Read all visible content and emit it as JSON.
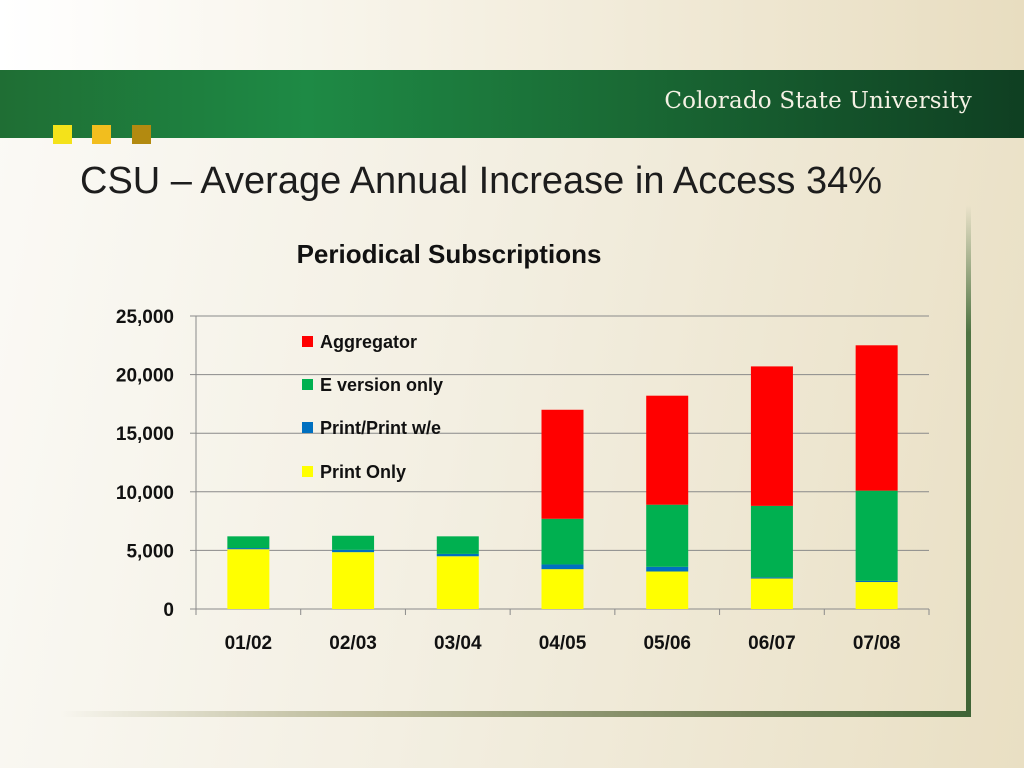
{
  "slide": {
    "brand": "Colorado State University",
    "title": "CSU – Average Annual Increase in Access 34%"
  },
  "colors": {
    "Aggregator": "#ff0000",
    "E version only": "#00b050",
    "Print/Print w/e": "#0070c0",
    "Print Only": "#ffff00"
  },
  "chart_data": {
    "type": "bar",
    "stacked": true,
    "title": "Periodical Subscriptions",
    "xlabel": "",
    "ylabel": "",
    "ylim": [
      0,
      25000
    ],
    "yticks": [
      "0",
      "5,000",
      "10,000",
      "15,000",
      "20,000",
      "25,000"
    ],
    "grid": true,
    "legend_position": "top-left inside plot",
    "categories": [
      "01/02",
      "02/03",
      "03/04",
      "04/05",
      "05/06",
      "06/07",
      "07/08"
    ],
    "series": [
      {
        "name": "Print Only",
        "values": [
          5100,
          4850,
          4500,
          3400,
          3200,
          2600,
          2300
        ]
      },
      {
        "name": "Print/Print w/e",
        "values": [
          100,
          200,
          200,
          400,
          400,
          100,
          100
        ]
      },
      {
        "name": "E version only",
        "values": [
          1000,
          1200,
          1500,
          3900,
          5300,
          6100,
          7700
        ]
      },
      {
        "name": "Aggregator",
        "values": [
          0,
          0,
          0,
          9300,
          9300,
          11900,
          12400
        ]
      }
    ],
    "legend_order": [
      "Aggregator",
      "E version only",
      "Print/Print w/e",
      "Print Only"
    ]
  }
}
